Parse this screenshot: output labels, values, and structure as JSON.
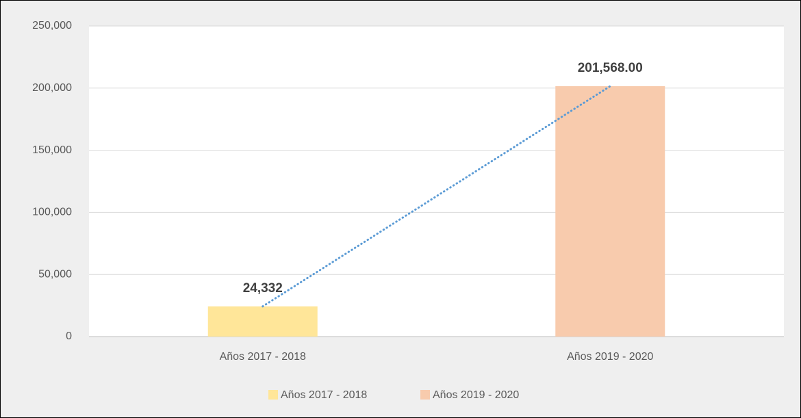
{
  "chart_data": {
    "type": "bar",
    "categories": [
      "Años 2017 - 2018",
      "Años 2019 - 2020"
    ],
    "values": [
      24332,
      201568
    ],
    "value_labels": [
      "24,332",
      "201,568.00"
    ],
    "colors": [
      "#ffe699",
      "#f8cbad"
    ],
    "ylim": [
      0,
      250000
    ],
    "yticks": [
      0,
      {
        "value": 50000,
        "label": "50,000"
      },
      {
        "value": 100000,
        "label": "100,000"
      },
      {
        "value": 150000,
        "label": "150,000"
      },
      {
        "value": 200000,
        "label": "200,000"
      },
      {
        "value": 250000,
        "label": "250,000"
      }
    ],
    "grid": true,
    "trendline": {
      "color": "#5b9bd5",
      "style": "dotted"
    },
    "legend": "bottom"
  }
}
